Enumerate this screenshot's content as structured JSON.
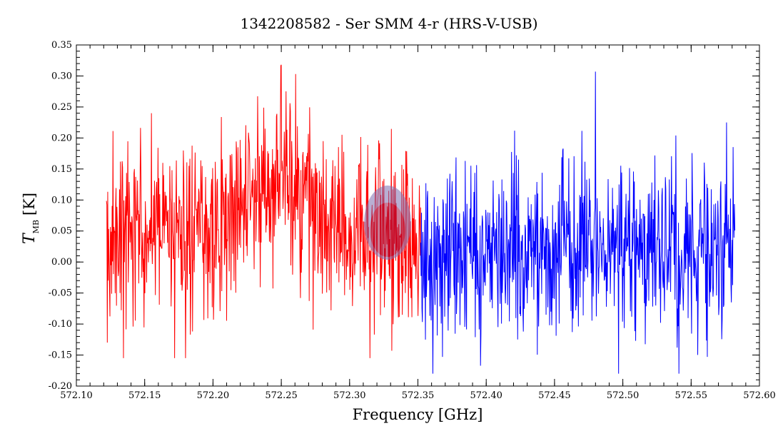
{
  "chart_data": {
    "type": "line",
    "title": "1342208582 - Ser SMM 4-r (HRS-V-USB)",
    "xlabel": "Frequency [GHz]",
    "ylabel": {
      "main": "T",
      "subscript": "MB",
      "unit": "[K]"
    },
    "xlim": [
      572.1,
      572.6
    ],
    "ylim": [
      -0.2,
      0.35
    ],
    "x_ticks": [
      "572.10",
      "572.15",
      "572.20",
      "572.25",
      "572.30",
      "572.35",
      "572.40",
      "572.45",
      "572.50",
      "572.55",
      "572.60"
    ],
    "y_ticks": [
      "-0.20",
      "-0.15",
      "-0.10",
      "-0.05",
      "0.00",
      "0.05",
      "0.10",
      "0.15",
      "0.20",
      "0.25",
      "0.30",
      "0.35"
    ],
    "grid": false,
    "legend": "none",
    "series": [
      {
        "color": "#ff0000",
        "x_range": [
          572.122,
          572.352
        ],
        "points": 720,
        "noise_sigma": 0.075,
        "baseline": 0.04,
        "feature": {
          "center": 572.25,
          "width": 0.02,
          "peak": 0.1
        },
        "min": -0.155,
        "max": 0.318,
        "values_note_points": [
          [
            572.1225,
            -0.13
          ],
          [
            572.155,
            0.24
          ],
          [
            572.18,
            -0.155
          ],
          [
            572.25,
            0.318
          ],
          [
            572.315,
            -0.155
          ]
        ]
      },
      {
        "color": "#0000ff",
        "x_range": [
          572.352,
          572.582
        ],
        "points": 720,
        "noise_sigma": 0.07,
        "baseline": 0.02,
        "min": -0.18,
        "max": 0.307,
        "values_note_points": [
          [
            572.361,
            -0.18
          ],
          [
            572.48,
            0.307
          ],
          [
            572.541,
            -0.18
          ],
          [
            572.576,
            0.225
          ]
        ]
      }
    ]
  }
}
